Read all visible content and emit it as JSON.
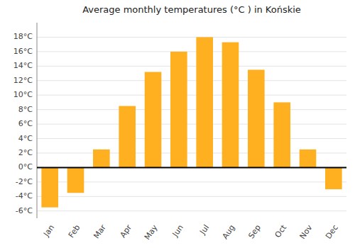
{
  "chart_data": {
    "type": "bar",
    "title": "Average monthly temperatures (°C ) in Końskie",
    "categories": [
      "Jan",
      "Feb",
      "Mar",
      "Apr",
      "May",
      "Jun",
      "Jul",
      "Aug",
      "Sep",
      "Oct",
      "Nov",
      "Dec"
    ],
    "values": [
      -5.5,
      -3.5,
      2.5,
      8.5,
      13.2,
      16.0,
      18.0,
      17.3,
      13.5,
      9.0,
      2.5,
      -3.0
    ],
    "color": "#FFB020",
    "ylim": [
      -7,
      20
    ],
    "yticks": [
      {
        "value": -6,
        "label": "-6°C"
      },
      {
        "value": -4,
        "label": "-4°C"
      },
      {
        "value": -2,
        "label": "-2°C"
      },
      {
        "value": 0,
        "label": "0°C"
      },
      {
        "value": 2,
        "label": "2°C"
      },
      {
        "value": 4,
        "label": "4°C"
      },
      {
        "value": 6,
        "label": "6°C"
      },
      {
        "value": 8,
        "label": "8°C"
      },
      {
        "value": 10,
        "label": "10°C"
      },
      {
        "value": 12,
        "label": "12°C"
      },
      {
        "value": 14,
        "label": "14°C"
      },
      {
        "value": 16,
        "label": "16°C"
      },
      {
        "value": 18,
        "label": "18°C"
      }
    ],
    "grid": true
  }
}
